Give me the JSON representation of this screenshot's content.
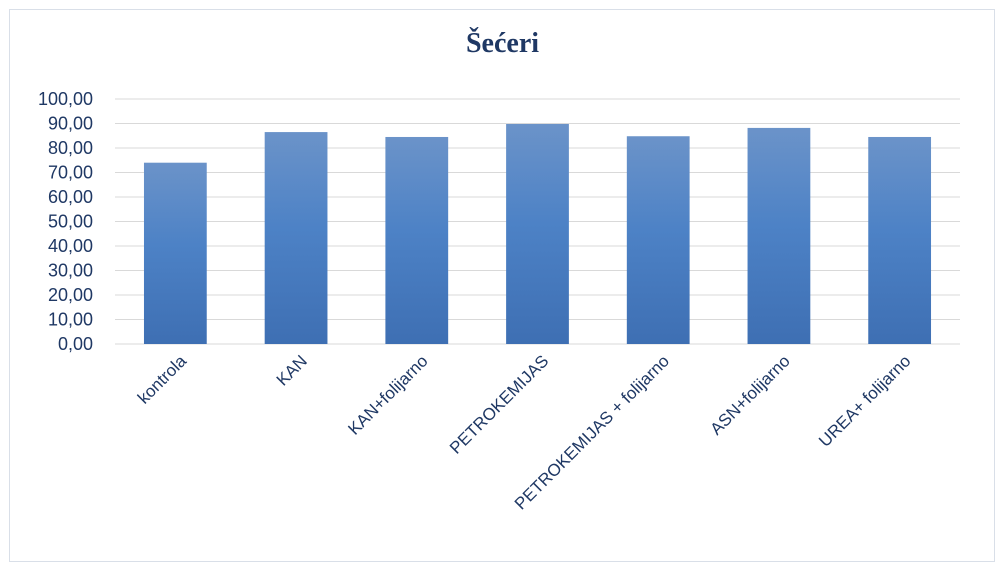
{
  "chart_data": {
    "type": "bar",
    "title": "Šećeri",
    "categories": [
      "kontrola",
      "KAN",
      "KAN+folijarno",
      "PETROKEMIJAS",
      "PETROKEMIJAS + folijarno",
      "ASN+folijarno",
      "UREA+ folijarno"
    ],
    "values": [
      74.0,
      86.5,
      84.5,
      89.8,
      84.8,
      88.2,
      84.5
    ],
    "ylim": [
      0,
      100
    ],
    "yticks": [
      "0,00",
      "10,00",
      "20,00",
      "30,00",
      "40,00",
      "50,00",
      "60,00",
      "70,00",
      "80,00",
      "90,00",
      "100,00"
    ],
    "grid": true,
    "legend": "none",
    "colors": {
      "bar_top": "#6b93c9",
      "bar_mid": "#4d82c6",
      "bar_bottom": "#3e6fb3",
      "grid": "#d9d9d9",
      "text": "#1f3864"
    }
  }
}
